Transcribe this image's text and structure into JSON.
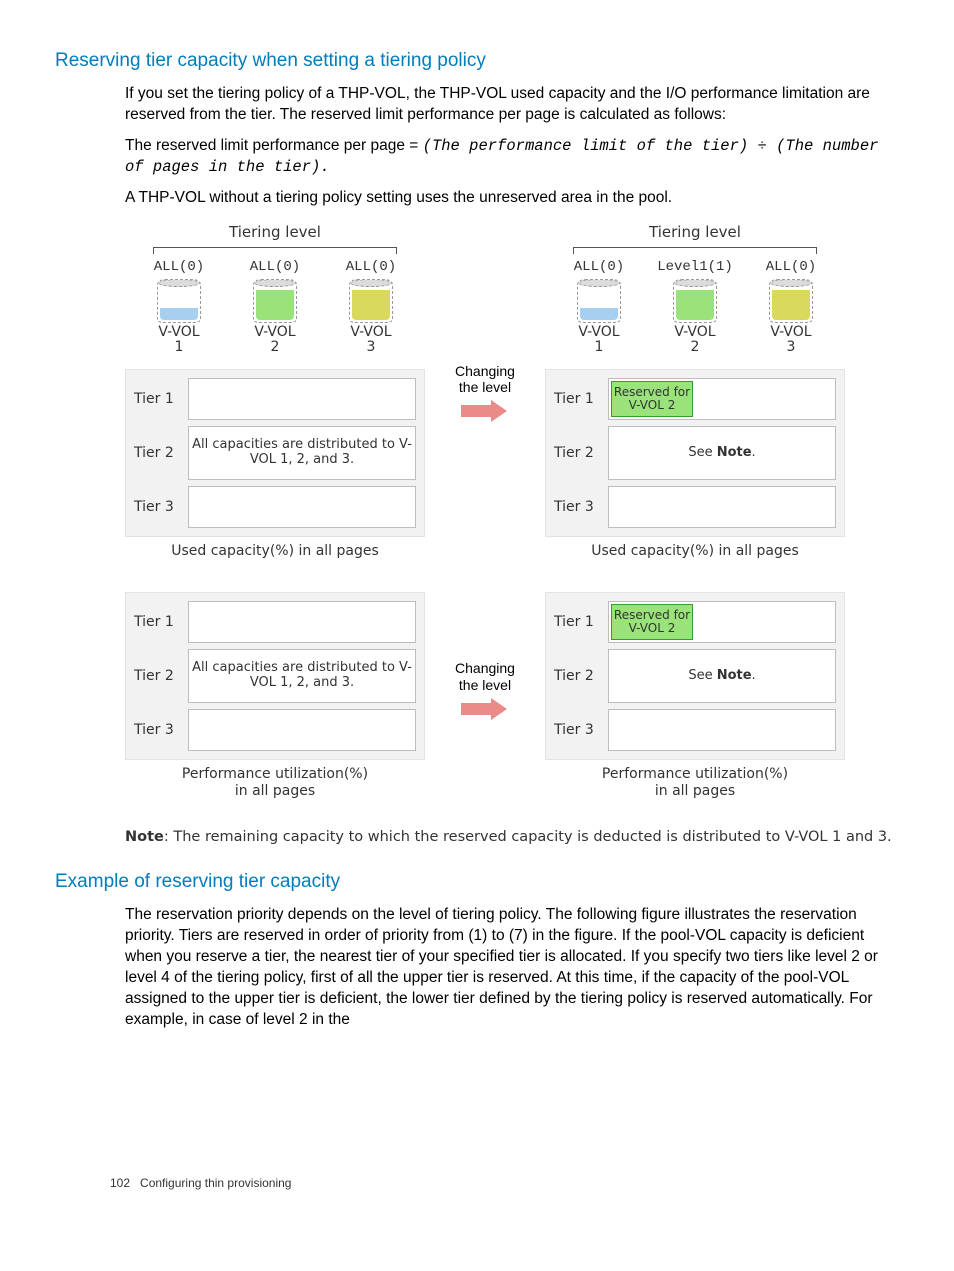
{
  "heading1": "Reserving tier capacity when setting a tiering policy",
  "para1": "If you set the tiering policy of a THP-VOL, the THP-VOL used capacity and the I/O performance limitation are reserved from the tier. The reserved limit performance per page is calculated as follows:",
  "formula_lead": "The reserved limit performance per page = ",
  "formula_mono": "(The performance limit of the tier) ÷ (The number of pages in the tier).",
  "para2": "A THP-VOL without a tiering policy setting uses the unreserved area in the pool.",
  "figure": {
    "top": {
      "left": {
        "bracket_label": "Tiering level",
        "vvols": [
          {
            "lvl": "ALL(0)",
            "fill_color": "#a7cff0",
            "fill_h": 12,
            "name": "V-VOL\n1"
          },
          {
            "lvl": "ALL(0)",
            "fill_color": "#9ae27a",
            "fill_h": 30,
            "name": "V-VOL\n2"
          },
          {
            "lvl": "ALL(0)",
            "fill_color": "#d8d95d",
            "fill_h": 30,
            "name": "V-VOL\n3"
          }
        ],
        "tier_rows": [
          {
            "lbl": "Tier 1",
            "big": false,
            "text": "",
            "reserved": false
          },
          {
            "lbl": "Tier 2",
            "big": true,
            "text": "All capacities are distributed to V-VOL 1, 2, and 3.",
            "reserved": false
          },
          {
            "lbl": "Tier 3",
            "big": false,
            "text": "",
            "reserved": false
          }
        ],
        "caption": "Used capacity(%) in all pages"
      },
      "mid": {
        "label": "Changing\nthe level"
      },
      "right": {
        "bracket_label": "Tiering level",
        "vvols": [
          {
            "lvl": "ALL(0)",
            "fill_color": "#a7cff0",
            "fill_h": 12,
            "name": "V-VOL\n1"
          },
          {
            "lvl": "Level1(1)",
            "fill_color": "#9ae27a",
            "fill_h": 30,
            "name": "V-VOL\n2"
          },
          {
            "lvl": "ALL(0)",
            "fill_color": "#d8d95d",
            "fill_h": 30,
            "name": "V-VOL\n3"
          }
        ],
        "tier_rows": [
          {
            "lbl": "Tier 1",
            "big": false,
            "text": "",
            "reserved": true,
            "reserved_text": "Reserved for V-VOL 2"
          },
          {
            "lbl": "Tier 2",
            "big": true,
            "text_html": "See <b>Note</b>.",
            "reserved": false
          },
          {
            "lbl": "Tier 3",
            "big": false,
            "text": "",
            "reserved": false
          }
        ],
        "caption": "Used capacity(%) in all pages"
      }
    },
    "bottom": {
      "left": {
        "tier_rows": [
          {
            "lbl": "Tier 1",
            "big": false,
            "text": "",
            "reserved": false
          },
          {
            "lbl": "Tier 2",
            "big": true,
            "text": "All capacities are distributed to V-VOL 1, 2, and 3.",
            "reserved": false
          },
          {
            "lbl": "Tier 3",
            "big": false,
            "text": "",
            "reserved": false
          }
        ],
        "caption": "Performance utilization(%)\nin all pages"
      },
      "mid": {
        "label": "Changing\nthe level"
      },
      "right": {
        "tier_rows": [
          {
            "lbl": "Tier 1",
            "big": false,
            "text": "",
            "reserved": true,
            "reserved_text": "Reserved for V-VOL 2"
          },
          {
            "lbl": "Tier 2",
            "big": true,
            "text_html": "See <b>Note</b>.",
            "reserved": false
          },
          {
            "lbl": "Tier 3",
            "big": false,
            "text": "",
            "reserved": false
          }
        ],
        "caption": "Performance utilization(%)\nin all pages"
      }
    }
  },
  "note_bold": "Note",
  "note_text": ": The remaining capacity to which the reserved capacity is deducted is distributed to V-VOL 1 and 3.",
  "heading2": "Example of reserving tier capacity",
  "para3": "The reservation priority depends on the level of tiering policy. The following figure illustrates the reservation priority. Tiers are reserved in order of priority from (1) to (7) in the figure. If the pool-VOL capacity is deficient when you reserve a tier, the nearest tier of your specified tier is allocated. If you specify two tiers like level 2 or level 4 of the tiering policy, first of all the upper tier is reserved. At this time, if the capacity of the pool-VOL assigned to the upper tier is deficient, the lower tier defined by the tiering policy is reserved automatically. For example, in case of level 2 in the",
  "footer_pg": "102",
  "footer_txt": "Configuring thin provisioning",
  "colors": {
    "heading": "#007dba",
    "frame_bg": "#f2f2f2",
    "frame_border": "#e3e3e3",
    "box_border": "#bdbdbd",
    "reserved_fill": "#9ae27a",
    "reserved_border": "#3a9a2f",
    "arrow": "#e98b87"
  }
}
